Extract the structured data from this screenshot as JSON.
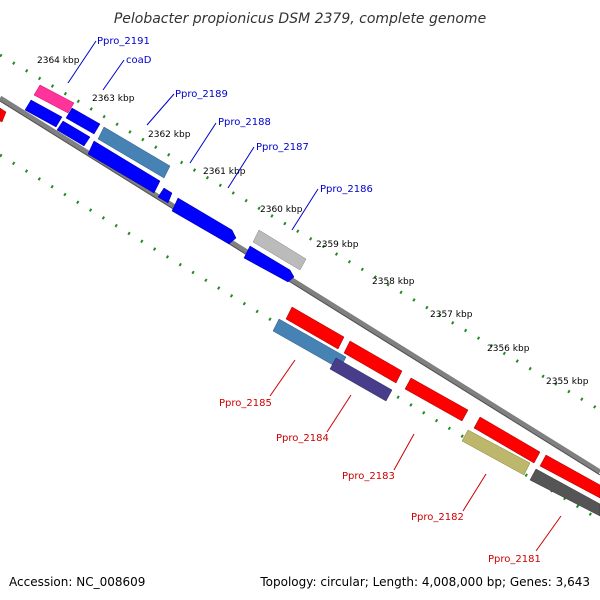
{
  "title": "Pelobacter propionicus DSM 2379, complete genome",
  "footer": {
    "accession": "Accession: NC_008609",
    "summary": "Topology: circular; Length: 4,008,000 bp; Genes: 3,643"
  },
  "ticks": [
    {
      "label": "2364 kbp"
    },
    {
      "label": "2363 kbp"
    },
    {
      "label": "2362 kbp"
    },
    {
      "label": "2361 kbp"
    },
    {
      "label": "2360 kbp"
    },
    {
      "label": "2359 kbp"
    },
    {
      "label": "2358 kbp"
    },
    {
      "label": "2357 kbp"
    },
    {
      "label": "2356 kbp"
    },
    {
      "label": "2355 kbp"
    }
  ],
  "genes_forward": [
    {
      "label": "Ppro_2191",
      "color": "#ff3399"
    },
    {
      "label": "coaD",
      "color": "#0000ff"
    },
    {
      "label": "Ppro_2189",
      "color": "#4682b4"
    },
    {
      "label": "Ppro_2188",
      "color": "#0000ff"
    },
    {
      "label": "Ppro_2187",
      "color": "#0000ff"
    },
    {
      "label": "Ppro_2186",
      "color": "#bbbbbb"
    }
  ],
  "genes_reverse": [
    {
      "label": "Ppro_2185",
      "color": "#4682b4"
    },
    {
      "label": "Ppro_2184",
      "color": "#483d8b"
    },
    {
      "label": "Ppro_2183",
      "color": "#ff0000"
    },
    {
      "label": "Ppro_2182",
      "color": "#bdb76b"
    },
    {
      "label": "Ppro_2181",
      "color": "#555555"
    }
  ],
  "colors": {
    "forward_label": "#0000cc",
    "reverse_label": "#cc0000",
    "tick_dots": "#228b22",
    "backbone": "#808080"
  }
}
